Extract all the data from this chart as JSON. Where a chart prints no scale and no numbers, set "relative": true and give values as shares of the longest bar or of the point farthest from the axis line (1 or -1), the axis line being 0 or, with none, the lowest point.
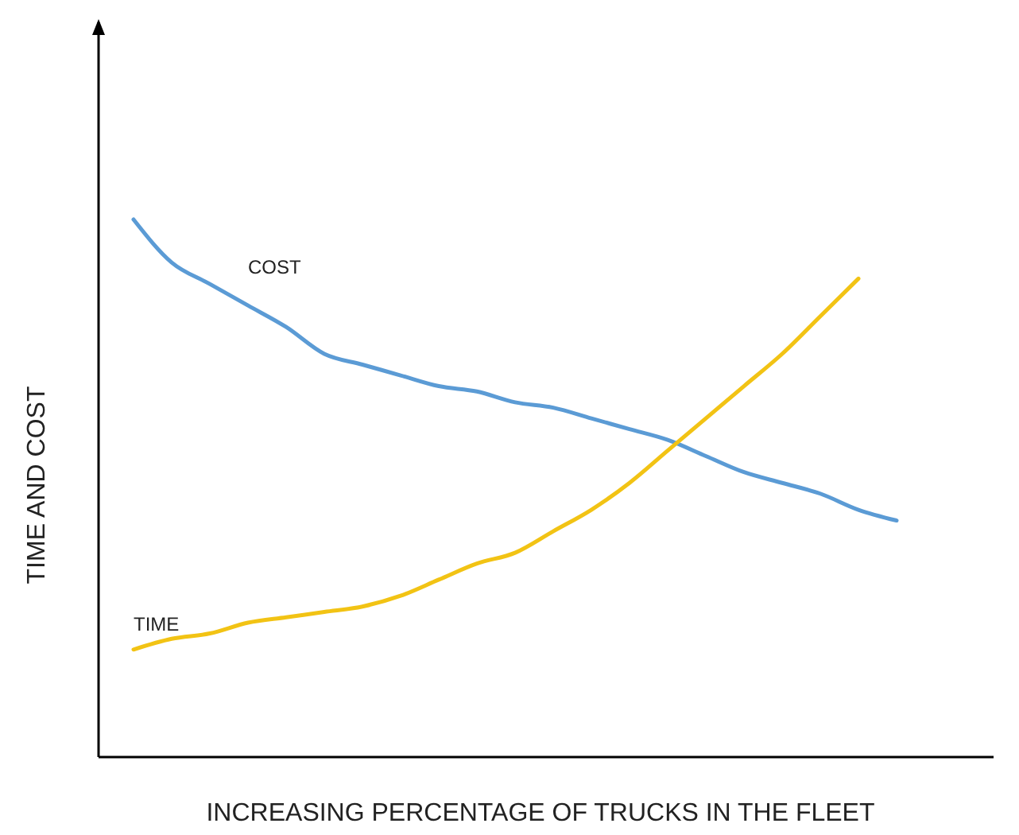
{
  "chart_data": {
    "type": "line",
    "relative": true,
    "xlabel": "INCREASING PERCENTAGE OF TRUCKS IN THE FLEET",
    "ylabel": "TIME AND COST",
    "legend": false,
    "marker": "none",
    "line_style": "solid",
    "categories": [
      null,
      null,
      null,
      null,
      null,
      null,
      null,
      null,
      null,
      null,
      null,
      null,
      null,
      null,
      null,
      null,
      null,
      null,
      null,
      null,
      null
    ],
    "series": [
      {
        "name": "COST",
        "color": "#5b9bd5",
        "values": [
          1,
          0.92,
          0.88,
          0.84,
          0.8,
          0.75,
          0.73,
          0.71,
          0.69,
          0.68,
          0.66,
          0.65,
          0.63,
          0.61,
          0.59,
          0.56,
          0.53,
          0.51,
          0.49,
          0.46,
          0.44
        ]
      },
      {
        "name": "TIME",
        "color": "#f2c314",
        "values": [
          0.2,
          0.22,
          0.23,
          0.25,
          0.26,
          0.27,
          0.28,
          0.3,
          0.33,
          0.36,
          0.38,
          0.42,
          0.46,
          0.51,
          0.57,
          0.63,
          0.69,
          0.75,
          0.82,
          0.89,
          null
        ]
      }
    ]
  }
}
